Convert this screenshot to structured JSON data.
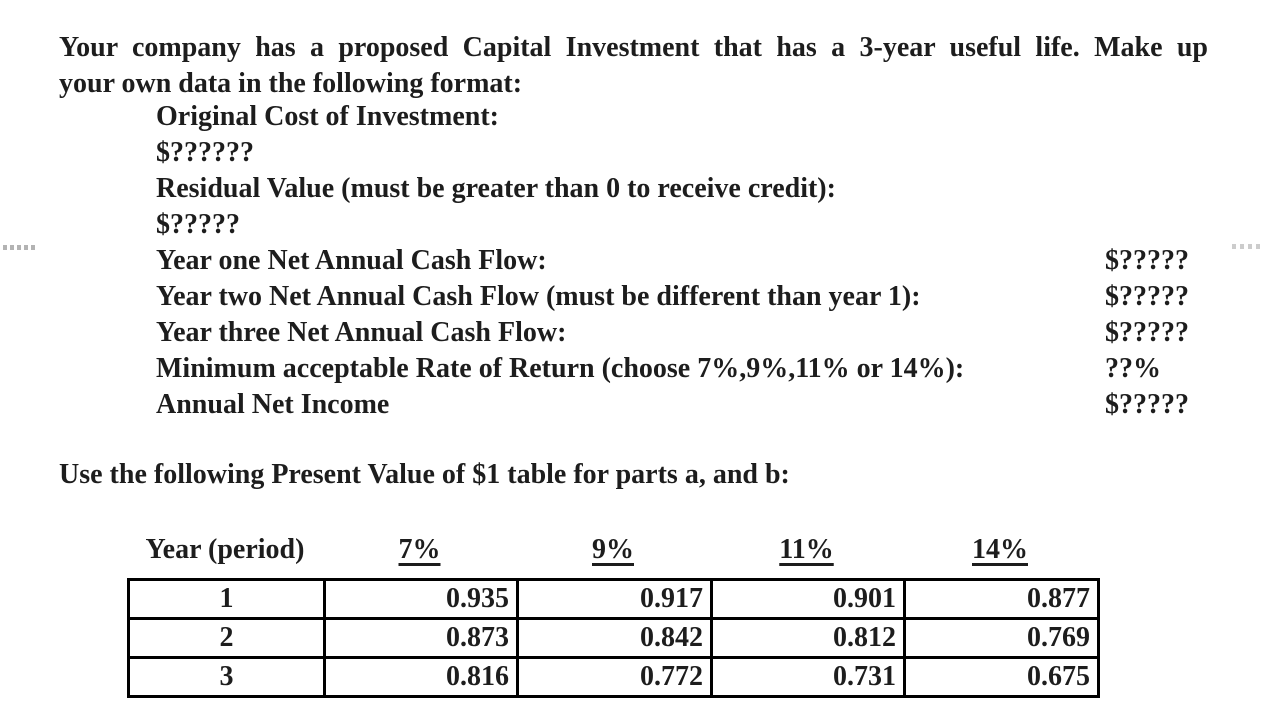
{
  "doc": {
    "intro_line1": "Your company has a proposed Capital Investment that has a 3-year useful life. Make up",
    "intro_line2": "your own data in the following format:",
    "items": [
      {
        "label": "Original Cost of Investment:",
        "value": "$??????"
      },
      {
        "label": "Residual Value (must be greater than 0 to receive credit):",
        "value": "$?????"
      },
      {
        "label": "Year one Net Annual Cash Flow:",
        "value": "$?????"
      },
      {
        "label": "Year two Net Annual Cash Flow (must be different than year 1):",
        "value": "$?????"
      },
      {
        "label": "Year three Net Annual Cash Flow:",
        "value": "$?????"
      },
      {
        "label": "Minimum acceptable Rate of Return (choose 7%,9%,11% or 14%):",
        "value": "??%"
      },
      {
        "label": "Annual Net Income",
        "value": "$?????"
      }
    ],
    "table_caption": "Use the following Present Value of $1 table for parts a, and b:"
  },
  "pv_table": {
    "title": "Present Value of $1",
    "header": [
      "Year (period)",
      "7%",
      "9%",
      "11%",
      "14%"
    ],
    "rows": [
      [
        "1",
        "0.935",
        "0.917",
        "0.901",
        "0.877"
      ],
      [
        "2",
        "0.873",
        "0.842",
        "0.812",
        "0.769"
      ],
      [
        "3",
        "0.816",
        "0.772",
        "0.731",
        "0.675"
      ]
    ]
  },
  "markers": {
    "left_dash_icon": "dashed-line-fragment",
    "left_dash_count": 5,
    "left_dash_color": "#b3b3b3",
    "right_dash_icon": "dashed-line-fragment",
    "right_dash_count": 4,
    "right_dash_color": "#cccccc"
  },
  "colors": {
    "background": "#ffffff",
    "text": "#1d1d1d",
    "table_border": "#000000"
  }
}
